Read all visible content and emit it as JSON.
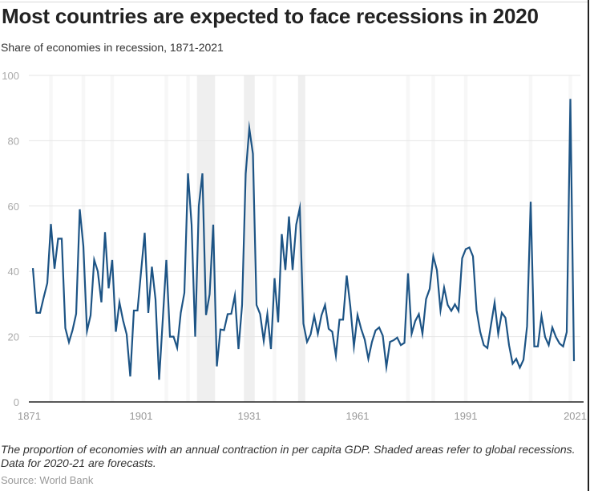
{
  "chart_data": {
    "type": "line",
    "title": "Most countries are expected to face recessions in 2020",
    "subtitle": "Share of economies in recession, 1871-2021",
    "xlabel": "",
    "ylabel": "",
    "xlim": [
      1871,
      2021
    ],
    "ylim": [
      0,
      100
    ],
    "yticks": [
      0,
      20,
      40,
      60,
      80,
      100
    ],
    "ytick_labels": [
      "0",
      "20",
      "40",
      "60",
      "80",
      "100"
    ],
    "xticks": [
      1871,
      1901,
      1931,
      1961,
      1991,
      2021
    ],
    "xtick_labels": [
      "1871",
      "1901",
      "1931",
      "1961",
      "1991",
      "2021"
    ],
    "grid": true,
    "legend": "none",
    "line_color": "#1d5485",
    "shaded_recessions": [
      {
        "start": 1917,
        "end": 1921,
        "shade": "strong"
      },
      {
        "start": 1930,
        "end": 1932,
        "shade": "strong"
      },
      {
        "start": 1945,
        "end": 1946,
        "shade": "strong"
      },
      {
        "start": 1876,
        "end": 1876,
        "shade": "faint"
      },
      {
        "start": 1885,
        "end": 1885,
        "shade": "faint"
      },
      {
        "start": 1893,
        "end": 1893,
        "shade": "faint"
      },
      {
        "start": 1908,
        "end": 1908,
        "shade": "faint"
      },
      {
        "start": 1914,
        "end": 1914,
        "shade": "faint"
      },
      {
        "start": 1938,
        "end": 1938,
        "shade": "faint"
      },
      {
        "start": 1975,
        "end": 1975,
        "shade": "faint"
      },
      {
        "start": 1982,
        "end": 1982,
        "shade": "faint"
      },
      {
        "start": 1991,
        "end": 1991,
        "shade": "faint"
      },
      {
        "start": 2009,
        "end": 2009,
        "shade": "faint"
      },
      {
        "start": 2020,
        "end": 2020,
        "shade": "faint"
      }
    ],
    "series": [
      {
        "name": "Share of economies in recession (%)",
        "x_start": 1871,
        "x_end": 2021,
        "values": [
          41,
          27.3,
          27.3,
          32,
          36.4,
          54.5,
          40.8,
          50,
          50,
          22.6,
          18.3,
          22,
          27,
          59,
          47.7,
          21.7,
          26.5,
          43.5,
          40,
          30.5,
          52,
          34.8,
          43.5,
          21.5,
          30.5,
          25,
          20.7,
          7.8,
          28,
          28,
          40,
          51.8,
          27.3,
          41.4,
          31.4,
          6.8,
          25,
          43.5,
          20,
          20,
          16.6,
          27.3,
          33.4,
          70,
          54.3,
          20,
          60,
          70,
          26.6,
          33,
          54.3,
          10.9,
          22.2,
          22,
          26.9,
          27,
          32.6,
          16.2,
          29.7,
          69.9,
          83.8,
          76,
          29.7,
          26.9,
          18.7,
          26.9,
          16.2,
          37.9,
          24.4,
          51.4,
          40.4,
          56.8,
          40.4,
          54.3,
          59.4,
          24,
          18.4,
          20.7,
          26.3,
          20.9,
          26.5,
          29.7,
          22.4,
          21.5,
          14.2,
          25.2,
          25.2,
          38.7,
          29.3,
          17,
          26.6,
          22.4,
          19.1,
          13.2,
          18.4,
          21.9,
          22.8,
          20.3,
          10.7,
          18.4,
          18.9,
          19.7,
          17.4,
          18.1,
          39.4,
          20.9,
          24.8,
          26.9,
          20.9,
          31.5,
          34.6,
          44.6,
          40.4,
          28.1,
          35,
          29.7,
          27.9,
          29.9,
          27.9,
          44,
          46.8,
          47.3,
          44.6,
          28.1,
          21.5,
          17.4,
          16.5,
          23.6,
          30.4,
          20.9,
          27.3,
          25.8,
          17.4,
          11.7,
          13.2,
          10.5,
          12.9,
          23.2,
          61.3,
          17,
          17,
          26.3,
          19.9,
          17.4,
          22.8,
          19.9,
          17.9,
          17,
          21.4,
          92.8,
          12.5
        ]
      }
    ],
    "caption": "The proportion of economies with an annual contraction in per capita GDP. Shaded areas refer to global recessions. Data for 2020-21 are forecasts.",
    "source": "Source: World Bank"
  }
}
